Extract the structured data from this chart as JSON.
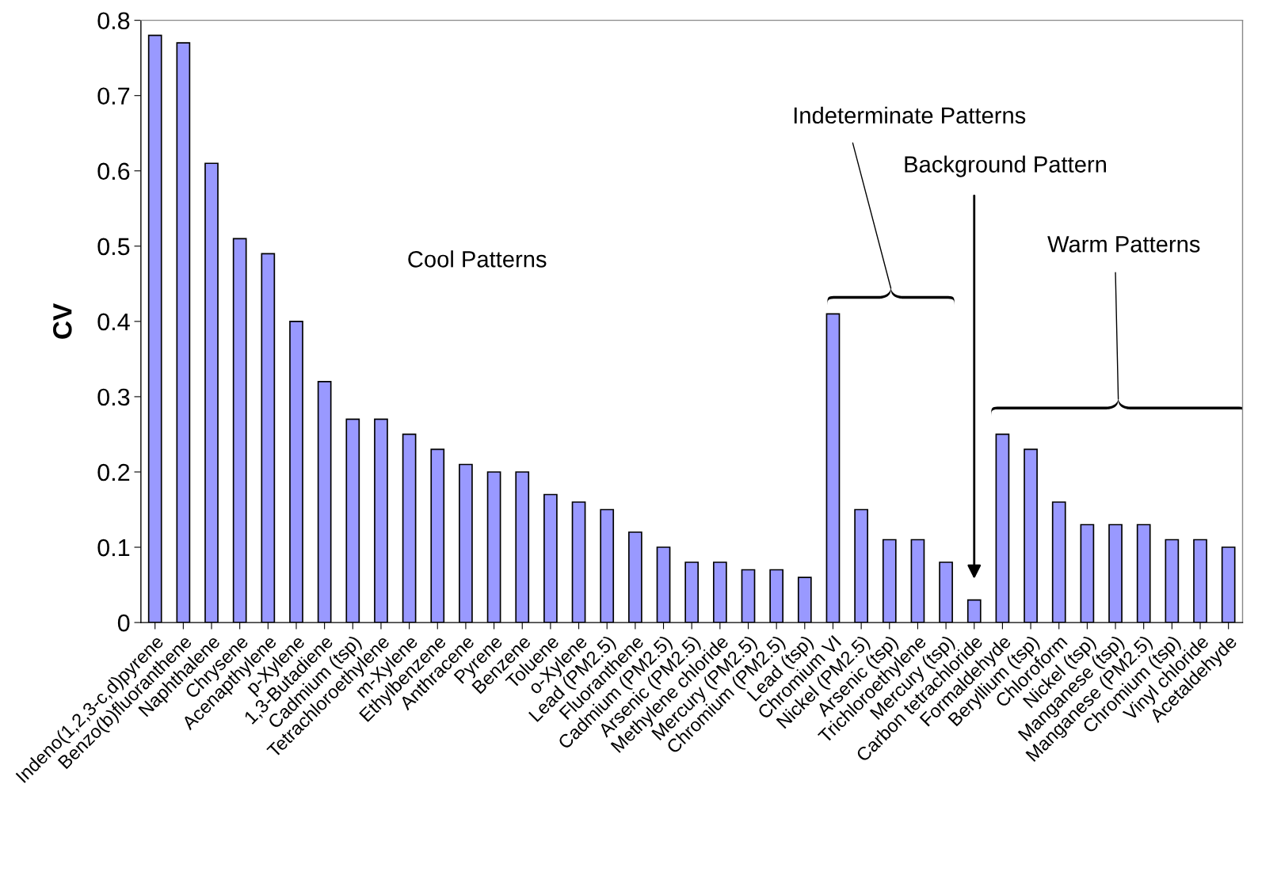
{
  "chart_data": {
    "type": "bar",
    "ylabel": "CV",
    "categories": [
      "Indeno(1,2,3-c,d)pyrene",
      "Benzo(b)fluoranthene",
      "Naphthalene",
      "Chrysene",
      "Acenapthylene",
      "p-Xylene",
      "1,3-Butadiene",
      "Cadmium (tsp)",
      "Tetrachloroethylene",
      "m-Xylene",
      "Ethylbenzene",
      "Anthracene",
      "Pyrene",
      "Benzene",
      "Toluene",
      "o-Xylene",
      "Lead (PM2.5)",
      "Fluoranthene",
      "Cadmium (PM2.5)",
      "Arsenic (PM2.5)",
      "Methylene chloride",
      "Mercury (PM2.5)",
      "Chromium (PM2.5)",
      "Lead (tsp)",
      "Chromium VI",
      "Nickel (PM2.5)",
      "Arsenic (tsp)",
      "Trichloroethylene",
      "Mercury (tsp)",
      "Carbon tetrachloride",
      "Formaldehyde",
      "Beryllium (tsp)",
      "Chloroform",
      "Nickel (tsp)",
      "Manganese (tsp)",
      "Manganese (PM2.5)",
      "Chromium (tsp)",
      "Vinyl chloride",
      "Acetaldehyde"
    ],
    "values": [
      0.78,
      0.77,
      0.61,
      0.51,
      0.49,
      0.4,
      0.32,
      0.27,
      0.27,
      0.25,
      0.23,
      0.21,
      0.2,
      0.2,
      0.17,
      0.16,
      0.15,
      0.12,
      0.1,
      0.08,
      0.08,
      0.07,
      0.07,
      0.06,
      0.41,
      0.15,
      0.11,
      0.11,
      0.08,
      0.03,
      0.25,
      0.23,
      0.16,
      0.13,
      0.13,
      0.13,
      0.11,
      0.11,
      0.1
    ],
    "color": "#9999ff",
    "ylim": [
      0,
      0.8
    ],
    "yticks": [
      0,
      0.1,
      0.2,
      0.3,
      0.4,
      0.5,
      0.6,
      0.7,
      0.8
    ],
    "grid": false,
    "annotations": [
      "Cool Patterns",
      "Indeterminate Patterns",
      "Background Pattern",
      "Warm Patterns"
    ]
  }
}
